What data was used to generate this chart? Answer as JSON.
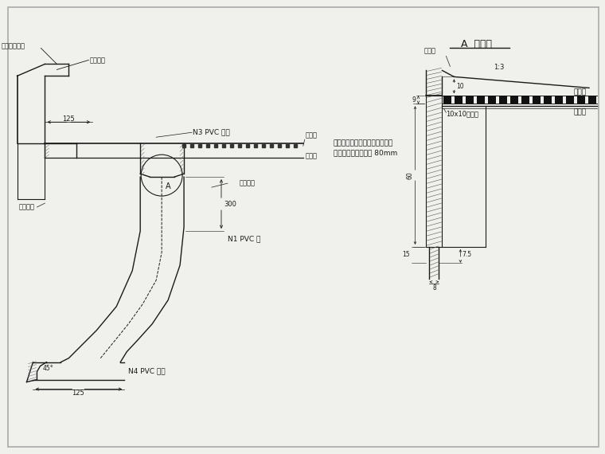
{
  "bg_color": "#f0f0ec",
  "line_color": "#1a1a1a",
  "title_A": "A  示意图",
  "label_N3": "N3 PVC 管盖",
  "label_N1": "N1 PVC 管",
  "label_N4": "N4 PVC 彊头",
  "label_baohu": "保护层",
  "label_fanshui": "防水层",
  "label_yuzhi1": "预制部分",
  "label_yuzhi2": "预制部件",
  "label_fangshui_tuliao": "防水涂料",
  "label_hunningtu": "混凝土抖缝缝",
  "label_A": "A",
  "label_note1": "用聚氨酯防水涂料贴卷材附加层",
  "label_note2": "进行封边处理，高度 80mm",
  "label_baohu2": "保护层",
  "label_fanshui2": "防水层",
  "label_paishuiban": "排水坡",
  "label_jiaojiao": "10x10嵌缝胶",
  "label_dim_125_top": "125",
  "label_dim_300": "300",
  "label_dim_125_bot": "125",
  "label_ratio": "1:3",
  "label_8": "8",
  "label_75": "7.5",
  "label_60": "60",
  "label_10": "10",
  "label_9": "9",
  "label_15": "15",
  "label_45": "45°"
}
